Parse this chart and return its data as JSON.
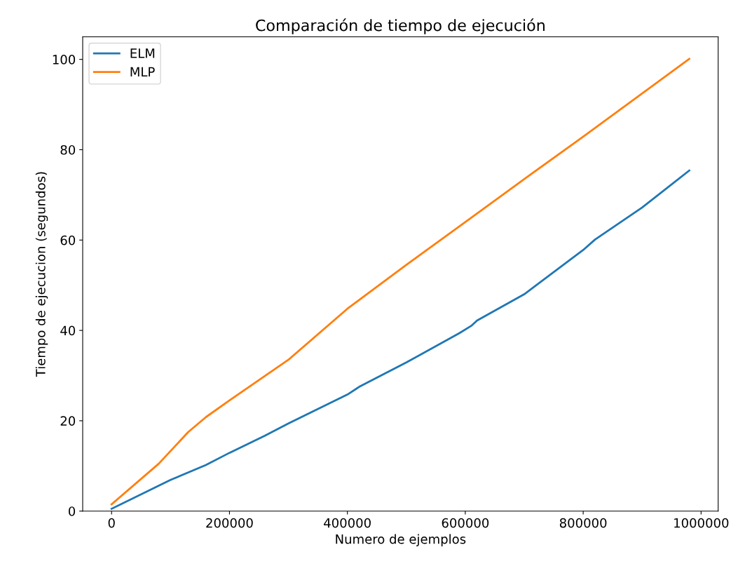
{
  "chart_data": {
    "type": "line",
    "title": "Comparación de tiempo de ejecución",
    "xlabel": "Numero de ejemplos",
    "ylabel": "Tiempo de ejecucion (segundos)",
    "series": [
      {
        "name": "ELM",
        "color": "#1f77b4",
        "x": [
          0,
          100000,
          160000,
          200000,
          260000,
          300000,
          400000,
          420000,
          500000,
          590000,
          610000,
          620000,
          700000,
          800000,
          820000,
          900000,
          980000
        ],
        "values": [
          0.5,
          6.9,
          10.2,
          12.9,
          16.7,
          19.4,
          25.8,
          27.5,
          32.9,
          39.4,
          41,
          42.2,
          48,
          57.8,
          60.1,
          67.2,
          75.4
        ]
      },
      {
        "name": "MLP",
        "color": "#ff7f0e",
        "x": [
          0,
          80000,
          130000,
          160000,
          200000,
          300000,
          400000,
          500000,
          600000,
          700000,
          800000,
          980000
        ],
        "values": [
          1.5,
          10.5,
          17.5,
          20.8,
          24.5,
          33.5,
          44.8,
          54.5,
          64,
          73.5,
          82.9,
          100.1
        ]
      }
    ],
    "xlim": [
      -49000,
      1029000
    ],
    "xticks": [
      0,
      200000,
      400000,
      600000,
      800000,
      1000000
    ],
    "ylim": [
      0,
      105
    ],
    "yticks": [
      0,
      20,
      40,
      60,
      80,
      100
    ],
    "grid": false,
    "legend": "top left"
  }
}
